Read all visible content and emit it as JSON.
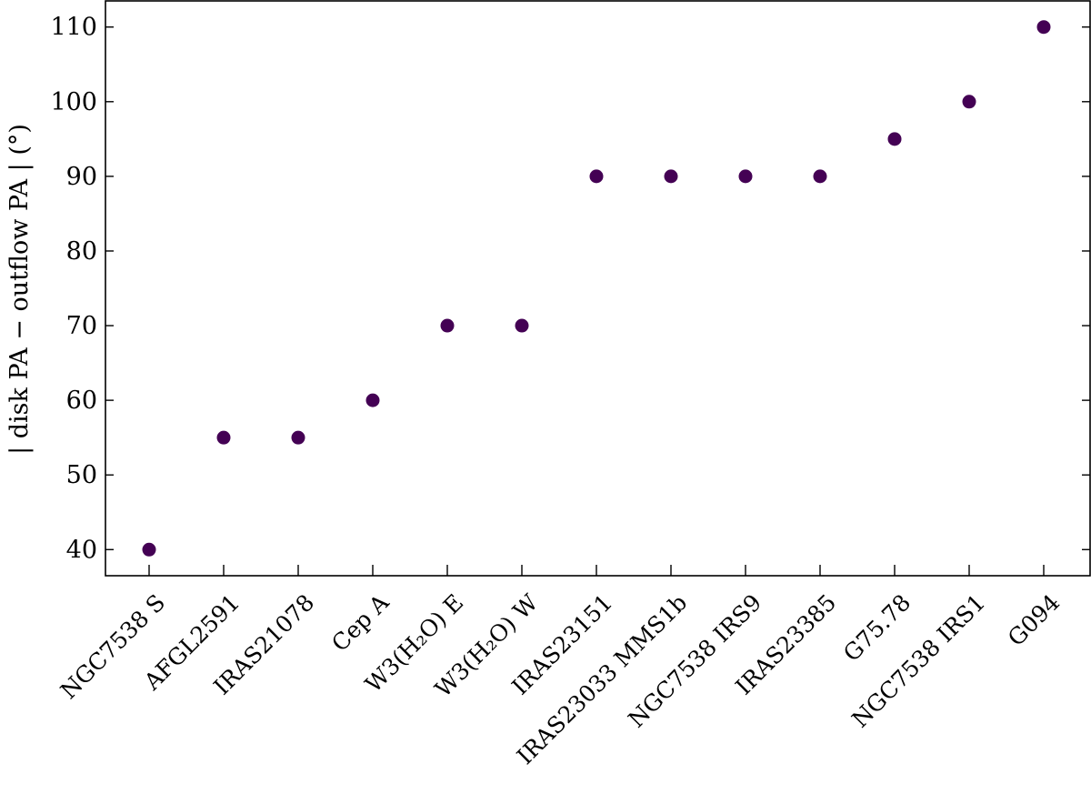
{
  "chart_data": {
    "type": "scatter",
    "title": "",
    "xlabel": "",
    "ylabel": "| disk PA − outflow PA | (°)",
    "categories": [
      "NGC7538 S",
      "AFGL2591",
      "IRAS21078",
      "Cep A",
      "W3(H₂O) E",
      "W3(H₂O) W",
      "IRAS23151",
      "IRAS23033 MMS1b",
      "NGC7538 IRS9",
      "IRAS23385",
      "G75.78",
      "NGC7538 IRS1",
      "G094"
    ],
    "values": [
      40,
      55,
      55,
      60,
      70,
      70,
      90,
      90,
      90,
      90,
      95,
      100,
      110
    ],
    "ylim": [
      36.5,
      113.5
    ],
    "yticks": [
      40,
      50,
      60,
      70,
      80,
      90,
      100,
      110
    ],
    "grid": false,
    "legend": "none",
    "colors": {
      "marker": "#440154",
      "axis": "#000000"
    }
  }
}
